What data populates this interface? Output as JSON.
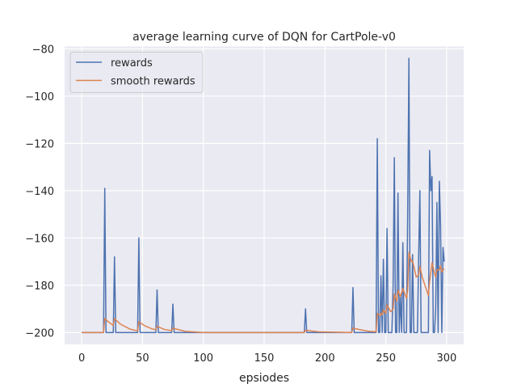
{
  "chart_data": {
    "type": "line",
    "title": "average learning curve of DQN for CartPole-v0",
    "xlabel": "epsiodes",
    "ylabel": "",
    "xlim": [
      -14,
      314
    ],
    "ylim": [
      -205,
      -79
    ],
    "xticks": [
      0,
      50,
      100,
      150,
      200,
      250,
      300
    ],
    "yticks": [
      -200,
      -180,
      -160,
      -140,
      -120,
      -100,
      -80
    ],
    "xtick_labels": [
      "0",
      "50",
      "100",
      "150",
      "200",
      "250",
      "300"
    ],
    "ytick_labels": [
      "−200",
      "−180",
      "−160",
      "−140",
      "−120",
      "−100",
      "−80"
    ],
    "grid": true,
    "legend_position": "top-left",
    "background_color": "#eaeaf2",
    "series": [
      {
        "name": "rewards",
        "color": "#4c72b0",
        "points": [
          [
            0,
            -200
          ],
          [
            18,
            -200
          ],
          [
            19,
            -139
          ],
          [
            20,
            -200
          ],
          [
            26,
            -200
          ],
          [
            27,
            -168
          ],
          [
            28,
            -200
          ],
          [
            46,
            -200
          ],
          [
            47,
            -160
          ],
          [
            48,
            -200
          ],
          [
            61,
            -200
          ],
          [
            62,
            -182
          ],
          [
            63,
            -200
          ],
          [
            74,
            -200
          ],
          [
            75,
            -188
          ],
          [
            76,
            -200
          ],
          [
            183,
            -200
          ],
          [
            184,
            -190
          ],
          [
            185,
            -200
          ],
          [
            222,
            -200
          ],
          [
            223,
            -181
          ],
          [
            224,
            -200
          ],
          [
            242,
            -200
          ],
          [
            243,
            -118
          ],
          [
            244,
            -200
          ],
          [
            245,
            -200
          ],
          [
            246,
            -176
          ],
          [
            247,
            -200
          ],
          [
            248,
            -169
          ],
          [
            249,
            -200
          ],
          [
            250,
            -200
          ],
          [
            251,
            -156
          ],
          [
            252,
            -200
          ],
          [
            253,
            -200
          ],
          [
            254,
            -200
          ],
          [
            255,
            -200
          ],
          [
            256,
            -180
          ],
          [
            257,
            -126
          ],
          [
            258,
            -200
          ],
          [
            259,
            -200
          ],
          [
            260,
            -141
          ],
          [
            261,
            -200
          ],
          [
            262,
            -185
          ],
          [
            263,
            -200
          ],
          [
            264,
            -162
          ],
          [
            265,
            -200
          ],
          [
            266,
            -200
          ],
          [
            267,
            -200
          ],
          [
            268,
            -148
          ],
          [
            269,
            -84
          ],
          [
            270,
            -200
          ],
          [
            271,
            -200
          ],
          [
            272,
            -167
          ],
          [
            273,
            -200
          ],
          [
            274,
            -200
          ],
          [
            275,
            -200
          ],
          [
            276,
            -200
          ],
          [
            277,
            -168
          ],
          [
            278,
            -140
          ],
          [
            279,
            -200
          ],
          [
            280,
            -200
          ],
          [
            281,
            -200
          ],
          [
            282,
            -200
          ],
          [
            283,
            -200
          ],
          [
            284,
            -200
          ],
          [
            285,
            -200
          ],
          [
            286,
            -123
          ],
          [
            287,
            -140
          ],
          [
            288,
            -134
          ],
          [
            289,
            -200
          ],
          [
            290,
            -200
          ],
          [
            291,
            -190
          ],
          [
            292,
            -145
          ],
          [
            293,
            -200
          ],
          [
            294,
            -136
          ],
          [
            295,
            -155
          ],
          [
            296,
            -200
          ],
          [
            297,
            -164
          ],
          [
            298,
            -170
          ]
        ]
      },
      {
        "name": "smooth rewards",
        "color": "#dd8452",
        "points": [
          [
            0,
            -200
          ],
          [
            18,
            -200
          ],
          [
            19,
            -194
          ],
          [
            20,
            -194.5
          ],
          [
            22,
            -195.5
          ],
          [
            26,
            -197
          ],
          [
            27,
            -194
          ],
          [
            28,
            -194.6
          ],
          [
            32,
            -196.5
          ],
          [
            40,
            -198.6
          ],
          [
            46,
            -199.3
          ],
          [
            47,
            -195.4
          ],
          [
            48,
            -195.8
          ],
          [
            52,
            -197.2
          ],
          [
            58,
            -198.5
          ],
          [
            61,
            -198.8
          ],
          [
            62,
            -197.3
          ],
          [
            63,
            -197.6
          ],
          [
            68,
            -198.7
          ],
          [
            74,
            -199.2
          ],
          [
            75,
            -198.1
          ],
          [
            76,
            -198.3
          ],
          [
            85,
            -199.5
          ],
          [
            100,
            -200
          ],
          [
            183,
            -200
          ],
          [
            184,
            -199
          ],
          [
            185,
            -199.1
          ],
          [
            195,
            -199.7
          ],
          [
            222,
            -200
          ],
          [
            223,
            -198.1
          ],
          [
            224,
            -198.3
          ],
          [
            235,
            -199.4
          ],
          [
            242,
            -199.7
          ],
          [
            243,
            -191.9
          ],
          [
            245,
            -192.7
          ],
          [
            246,
            -191.8
          ],
          [
            247,
            -192.6
          ],
          [
            248,
            -190.4
          ],
          [
            250,
            -191.9
          ],
          [
            251,
            -188.3
          ],
          [
            254,
            -191.2
          ],
          [
            256,
            -190.1
          ],
          [
            257,
            -183.7
          ],
          [
            259,
            -186.7
          ],
          [
            260,
            -182.1
          ],
          [
            262,
            -184.8
          ],
          [
            264,
            -181.3
          ],
          [
            267,
            -185.6
          ],
          [
            268,
            -181.8
          ],
          [
            269,
            -166
          ],
          [
            271,
            -170
          ],
          [
            272,
            -169.7
          ],
          [
            275,
            -176.5
          ],
          [
            277,
            -175.6
          ],
          [
            278,
            -172
          ],
          [
            280,
            -176.7
          ],
          [
            285,
            -184.3
          ],
          [
            286,
            -178.2
          ],
          [
            287,
            -174.4
          ],
          [
            288,
            -170.4
          ],
          [
            290,
            -175
          ],
          [
            291,
            -176.5
          ],
          [
            292,
            -173.4
          ],
          [
            294,
            -173.5
          ],
          [
            295,
            -171.7
          ],
          [
            296,
            -174.5
          ],
          [
            297,
            -173.5
          ],
          [
            298,
            -173.1
          ]
        ]
      }
    ]
  }
}
